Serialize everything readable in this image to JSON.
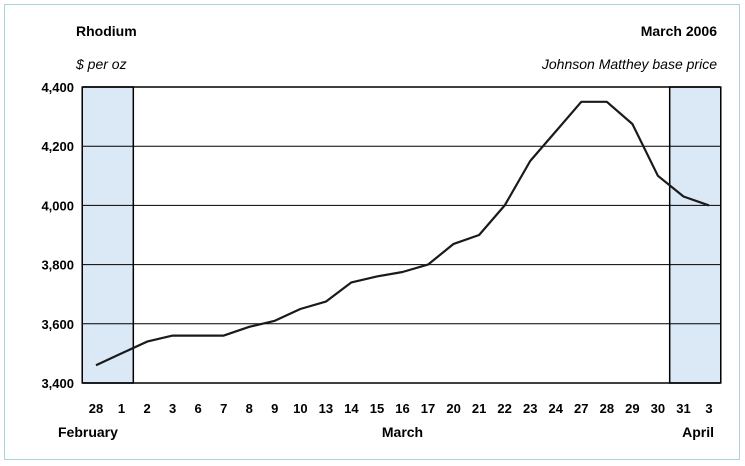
{
  "header": {
    "title": "Rhodium",
    "date": "March 2006",
    "unit": "$ per oz",
    "subtitle": "Johnson Matthey base price"
  },
  "colors": {
    "line": "#1a1a1a",
    "shade_fill": "#dbe8f6",
    "shade_stroke": "#000000",
    "grid": "#000000",
    "frame": "#aed1e2"
  },
  "chart_data": {
    "type": "line",
    "title": "Rhodium",
    "ylabel": "$ per oz",
    "ylim": [
      3400,
      4400
    ],
    "yticks": [
      3400,
      3600,
      3800,
      4000,
      4200,
      4400
    ],
    "ytick_labels": [
      "3,400",
      "3,600",
      "3,800",
      "4,000",
      "4,200",
      "4,400"
    ],
    "grid": true,
    "categories": [
      "28",
      "1",
      "2",
      "3",
      "6",
      "7",
      "8",
      "9",
      "10",
      "13",
      "14",
      "15",
      "16",
      "17",
      "20",
      "21",
      "22",
      "23",
      "24",
      "27",
      "28",
      "29",
      "30",
      "31",
      "3"
    ],
    "series": [
      {
        "values": [
          3460,
          3500,
          3540,
          3560,
          3560,
          3560,
          3590,
          3610,
          3650,
          3675,
          3740,
          3760,
          3775,
          3800,
          3870,
          3900,
          4000,
          4150,
          4250,
          4350,
          4350,
          4275,
          4100,
          4030,
          4000
        ]
      }
    ],
    "month_labels": [
      {
        "label": "February",
        "category_index": 0
      },
      {
        "label": "March",
        "category_index": 12
      },
      {
        "label": "April",
        "category_index": 24
      }
    ],
    "shaded_regions": [
      {
        "from_index": 0,
        "to_index": 1
      },
      {
        "from_index": 23,
        "to_index": 24
      }
    ]
  }
}
